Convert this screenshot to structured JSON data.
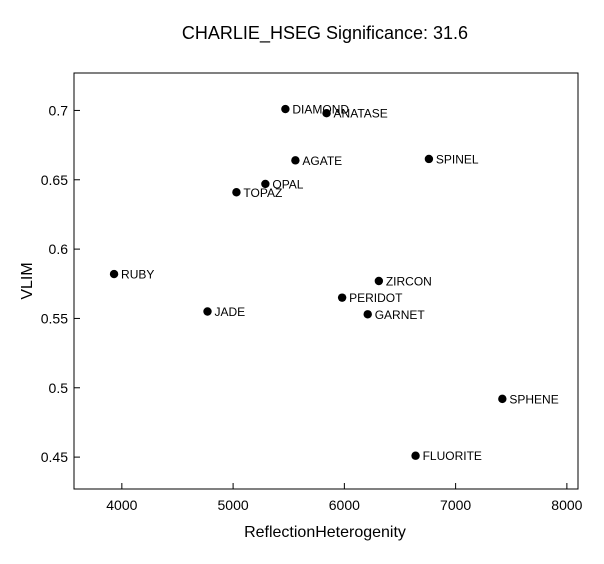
{
  "colors": {
    "background": "#ffffff",
    "ink": "#000000"
  },
  "chart_data": {
    "type": "scatter",
    "title": "CHARLIE_HSEG  Significance:  31.6",
    "xlabel": "ReflectionHeterogenity",
    "ylabel": "VLIM",
    "xlim": [
      3570,
      8100
    ],
    "ylim": [
      0.427,
      0.727
    ],
    "xticks": [
      4000,
      5000,
      6000,
      7000,
      8000
    ],
    "yticks": [
      0.45,
      0.5,
      0.55,
      0.6,
      0.65,
      0.7
    ],
    "xtick_labels": [
      "4000",
      "5000",
      "6000",
      "7000",
      "8000"
    ],
    "ytick_labels": [
      "0.45",
      "0.5",
      "0.55",
      "0.6",
      "0.65",
      "0.7"
    ],
    "grid": false,
    "legend": "none",
    "points": [
      {
        "label": "DIAMOND",
        "x": 5470,
        "y": 0.701
      },
      {
        "label": "ANATASE",
        "x": 5840,
        "y": 0.698
      },
      {
        "label": "AGATE",
        "x": 5560,
        "y": 0.664
      },
      {
        "label": "SPINEL",
        "x": 6760,
        "y": 0.665
      },
      {
        "label": "OPAL",
        "x": 5290,
        "y": 0.647
      },
      {
        "label": "TOPAZ",
        "x": 5030,
        "y": 0.641
      },
      {
        "label": "RUBY",
        "x": 3930,
        "y": 0.582
      },
      {
        "label": "ZIRCON",
        "x": 6310,
        "y": 0.577
      },
      {
        "label": "PERIDOT",
        "x": 5980,
        "y": 0.565
      },
      {
        "label": "JADE",
        "x": 4770,
        "y": 0.555
      },
      {
        "label": "GARNET",
        "x": 6210,
        "y": 0.553
      },
      {
        "label": "SPHENE",
        "x": 7420,
        "y": 0.492
      },
      {
        "label": "FLUORITE",
        "x": 6640,
        "y": 0.451
      }
    ]
  }
}
